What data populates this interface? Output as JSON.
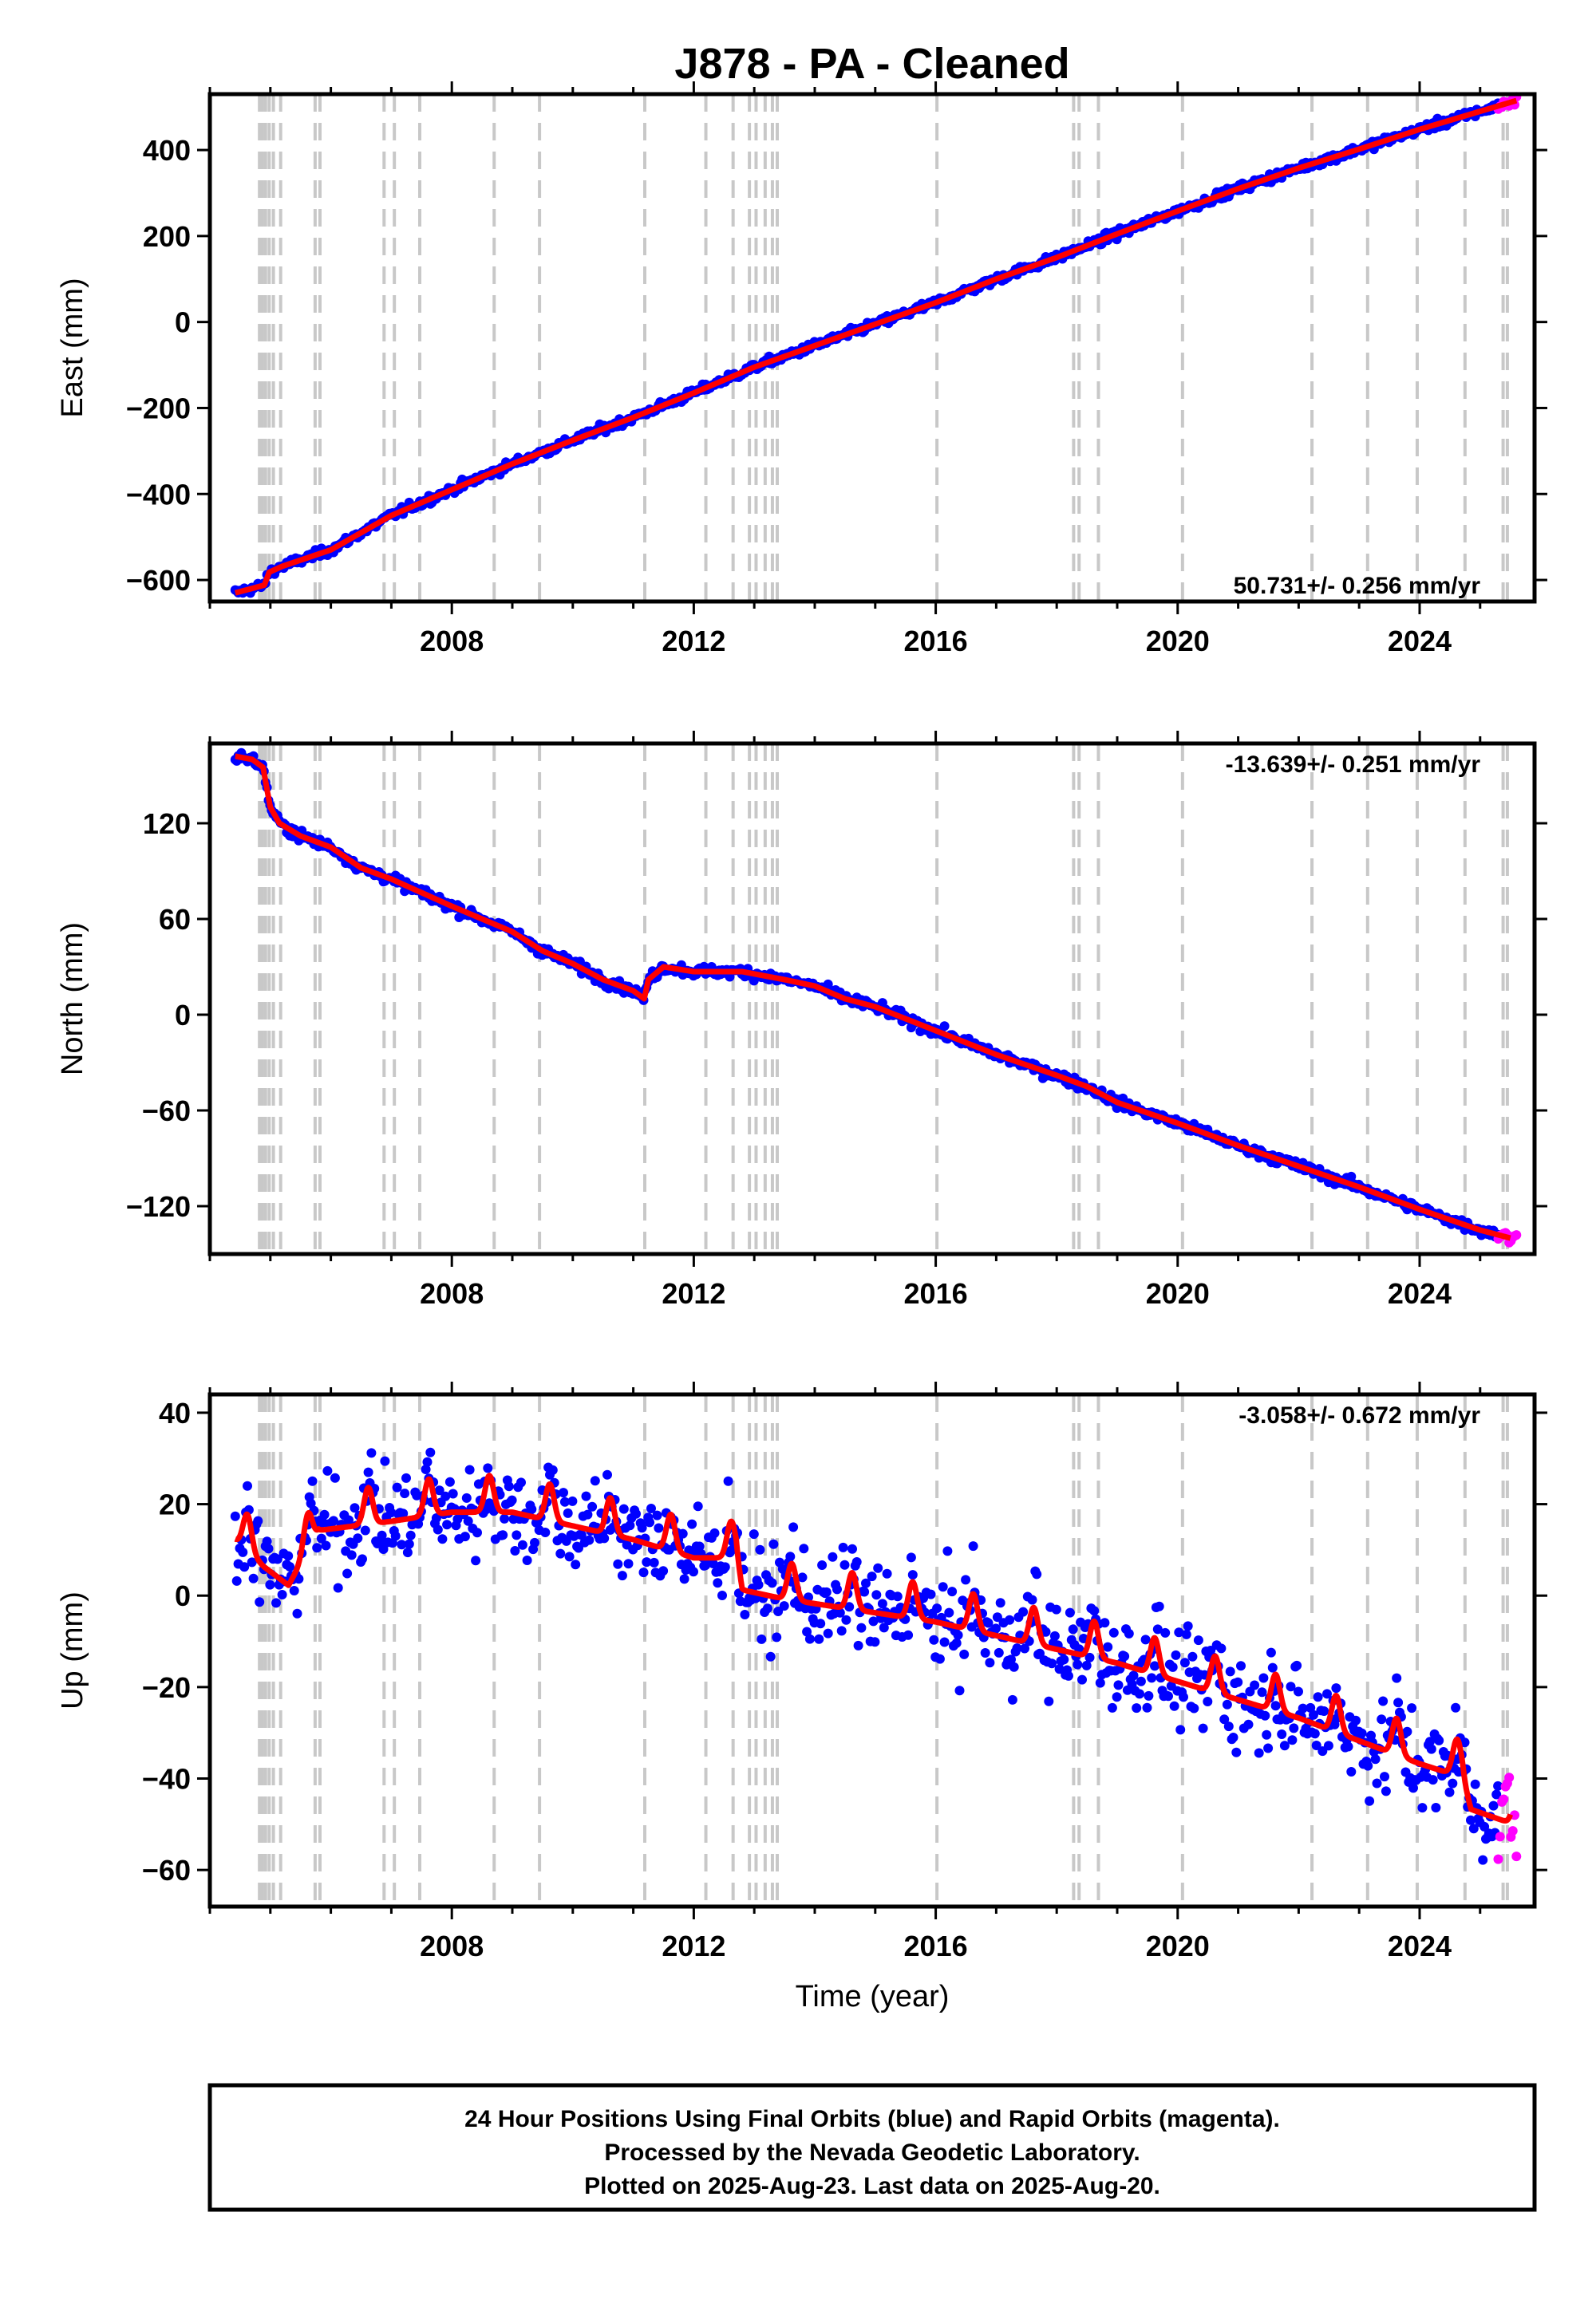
{
  "title": "J878  - PA - Cleaned",
  "colors": {
    "final_orbits": "#0000ff",
    "rapid_orbits": "#ff00ff",
    "model_fit": "#ff0000",
    "event_lines": "#c8c8c8"
  },
  "info_box": {
    "line1": "24 Hour Positions Using Final Orbits (blue) and Rapid Orbits (magenta).",
    "line2": "Processed by the Nevada Geodetic Laboratory.",
    "line3": "Plotted on 2025-Aug-23. Last data on 2025-Aug-20."
  },
  "chart_data": [
    {
      "type": "scatter",
      "component": "east",
      "xlabel": "",
      "ylabel": "East (mm)",
      "xlim": [
        2004.0,
        2025.9
      ],
      "ylim": [
        -650,
        530
      ],
      "x_ticks": [
        2008,
        2012,
        2016,
        2020,
        2024
      ],
      "y_ticks": [
        -600,
        -400,
        -200,
        0,
        200,
        400
      ],
      "rate_label": "50.731+/- 0.256 mm/yr",
      "rate_position": "bottom-right",
      "grid": false,
      "event_lines": [
        2004.82,
        2004.87,
        2004.92,
        2004.98,
        2005.05,
        2005.17,
        2005.74,
        2005.82,
        2006.88,
        2007.05,
        2007.47,
        2008.7,
        2009.45,
        2011.19,
        2012.2,
        2012.65,
        2012.92,
        2013.03,
        2013.18,
        2013.3,
        2013.38,
        2016.02,
        2018.28,
        2018.37,
        2018.69,
        2020.08,
        2022.22,
        2023.14,
        2023.96,
        2024.75,
        2025.38,
        2025.45
      ],
      "model_knots": [
        [
          2004.42,
          -630
        ],
        [
          2004.9,
          -612
        ],
        [
          2004.98,
          -582
        ],
        [
          2005.2,
          -568
        ],
        [
          2006.0,
          -530
        ],
        [
          2007.0,
          -450
        ],
        [
          2008.0,
          -390
        ],
        [
          2009.0,
          -330
        ],
        [
          2010.0,
          -275
        ],
        [
          2011.0,
          -222
        ],
        [
          2012.0,
          -165
        ],
        [
          2013.0,
          -105
        ],
        [
          2014.0,
          -55
        ],
        [
          2015.0,
          -5
        ],
        [
          2016.0,
          45
        ],
        [
          2017.0,
          100
        ],
        [
          2018.0,
          150
        ],
        [
          2019.0,
          205
        ],
        [
          2020.0,
          258
        ],
        [
          2021.0,
          310
        ],
        [
          2022.0,
          358
        ],
        [
          2023.0,
          402
        ],
        [
          2024.0,
          448
        ],
        [
          2025.0,
          490
        ],
        [
          2025.6,
          515
        ]
      ],
      "scatter_noise_mm": 5,
      "rapid_range": [
        2025.3,
        2025.6
      ]
    },
    {
      "type": "scatter",
      "component": "north",
      "xlabel": "",
      "ylabel": "North (mm)",
      "xlim": [
        2004.0,
        2025.9
      ],
      "ylim": [
        -150,
        170
      ],
      "x_ticks": [
        2008,
        2012,
        2016,
        2020,
        2024
      ],
      "y_ticks": [
        -120,
        -60,
        0,
        60,
        120
      ],
      "rate_label": "-13.639+/- 0.251 mm/yr",
      "rate_position": "top-right",
      "grid": false,
      "event_lines": [
        2004.82,
        2004.87,
        2004.92,
        2004.98,
        2005.05,
        2005.17,
        2005.74,
        2005.82,
        2006.88,
        2007.05,
        2007.47,
        2008.7,
        2009.45,
        2011.19,
        2012.2,
        2012.65,
        2012.92,
        2013.03,
        2013.18,
        2013.3,
        2013.38,
        2016.02,
        2018.28,
        2018.37,
        2018.69,
        2020.08,
        2022.22,
        2023.14,
        2023.96,
        2024.75,
        2025.38,
        2025.45
      ],
      "model_knots": [
        [
          2004.42,
          162
        ],
        [
          2004.7,
          160
        ],
        [
          2004.88,
          155
        ],
        [
          2004.95,
          140
        ],
        [
          2005.0,
          130
        ],
        [
          2005.15,
          120
        ],
        [
          2005.5,
          112
        ],
        [
          2006.0,
          105
        ],
        [
          2006.5,
          92
        ],
        [
          2007.0,
          85
        ],
        [
          2008.0,
          68
        ],
        [
          2009.0,
          52
        ],
        [
          2009.5,
          40
        ],
        [
          2010.0,
          32
        ],
        [
          2010.5,
          22
        ],
        [
          2011.0,
          15
        ],
        [
          2011.18,
          10
        ],
        [
          2011.25,
          22
        ],
        [
          2011.5,
          30
        ],
        [
          2012.0,
          27
        ],
        [
          2012.8,
          27
        ],
        [
          2013.5,
          22
        ],
        [
          2014.0,
          18
        ],
        [
          2014.5,
          10
        ],
        [
          2015.0,
          5
        ],
        [
          2016.0,
          -10
        ],
        [
          2017.0,
          -25
        ],
        [
          2018.0,
          -38
        ],
        [
          2018.5,
          -45
        ],
        [
          2019.0,
          -55
        ],
        [
          2020.0,
          -68
        ],
        [
          2021.0,
          -82
        ],
        [
          2022.0,
          -95
        ],
        [
          2023.0,
          -108
        ],
        [
          2024.0,
          -122
        ],
        [
          2025.0,
          -135
        ],
        [
          2025.5,
          -140
        ]
      ],
      "scatter_noise_mm": 1.6,
      "rapid_range": [
        2025.3,
        2025.6
      ]
    },
    {
      "type": "scatter",
      "component": "up",
      "xlabel": "Time (year)",
      "ylabel": "Up (mm)",
      "xlim": [
        2004.0,
        2025.9
      ],
      "ylim": [
        -68,
        44
      ],
      "x_ticks": [
        2008,
        2012,
        2016,
        2020,
        2024
      ],
      "y_ticks": [
        -60,
        -40,
        -20,
        0,
        20,
        40
      ],
      "rate_label": "-3.058+/- 0.672 mm/yr",
      "rate_position": "top-right",
      "grid": false,
      "event_lines": [
        2004.82,
        2004.87,
        2004.92,
        2004.98,
        2005.05,
        2005.17,
        2005.74,
        2005.82,
        2006.88,
        2007.05,
        2007.47,
        2008.7,
        2009.45,
        2011.19,
        2012.2,
        2012.65,
        2012.92,
        2013.03,
        2013.18,
        2013.3,
        2013.38,
        2016.02,
        2018.28,
        2018.37,
        2018.69,
        2020.08,
        2022.22,
        2023.14,
        2023.96,
        2024.75,
        2025.38,
        2025.45
      ],
      "model_knots": [
        [
          2004.42,
          14
        ],
        [
          2004.9,
          8
        ],
        [
          2005.3,
          4
        ],
        [
          2005.8,
          16
        ],
        [
          2007.0,
          18
        ],
        [
          2008.0,
          20
        ],
        [
          2009.0,
          20
        ],
        [
          2010.0,
          17
        ],
        [
          2011.0,
          14
        ],
        [
          2012.0,
          10
        ],
        [
          2012.7,
          10
        ],
        [
          2012.8,
          3
        ],
        [
          2013.5,
          1
        ],
        [
          2014.0,
          0
        ],
        [
          2015.0,
          -2
        ],
        [
          2016.0,
          -4
        ],
        [
          2017.0,
          -7
        ],
        [
          2018.0,
          -10
        ],
        [
          2019.0,
          -13
        ],
        [
          2020.0,
          -17
        ],
        [
          2021.0,
          -21
        ],
        [
          2022.0,
          -25
        ],
        [
          2023.0,
          -30
        ],
        [
          2024.0,
          -35
        ],
        [
          2024.7,
          -38
        ],
        [
          2024.85,
          -45
        ],
        [
          2025.5,
          -48
        ]
      ],
      "seasonal_amplitude_mm": 5,
      "scatter_noise_mm": 5,
      "rapid_range": [
        2025.3,
        2025.6
      ]
    }
  ]
}
